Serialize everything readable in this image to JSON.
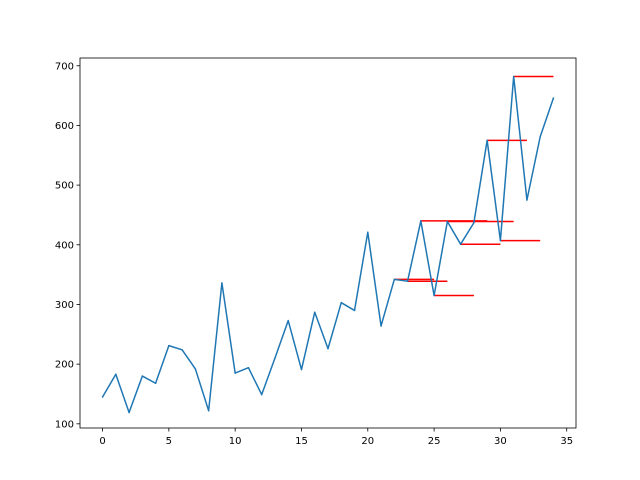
{
  "chart_data": {
    "type": "line",
    "title": "",
    "xlabel": "",
    "ylabel": "",
    "xlim": [
      -1.7,
      35.7
    ],
    "ylim": [
      93,
      713
    ],
    "x_ticks": [
      0,
      5,
      10,
      15,
      20,
      25,
      30,
      35
    ],
    "y_ticks": [
      100,
      200,
      300,
      400,
      500,
      600,
      700
    ],
    "grid": false,
    "legend": "none",
    "series": [
      {
        "color": "#1f77b4",
        "x": [
          0,
          1,
          2,
          3,
          4,
          5,
          6,
          7,
          8,
          9,
          10,
          11,
          12,
          13,
          14,
          15,
          16,
          17,
          18,
          19,
          20,
          21,
          22,
          23,
          24,
          25,
          26,
          27,
          28,
          29,
          30,
          31,
          32,
          33,
          34
        ],
        "values": [
          145,
          183,
          119,
          180,
          168,
          231,
          224,
          192,
          122,
          336,
          185,
          194,
          149,
          210,
          273,
          191,
          287,
          226,
          303,
          290,
          421,
          264,
          342,
          339,
          440,
          315,
          439,
          401,
          437,
          575,
          407,
          682,
          475,
          581,
          646
        ]
      }
    ],
    "segments": {
      "color": "#ff0000",
      "items": [
        {
          "x": [
            22,
            25
          ],
          "y": 342
        },
        {
          "x": [
            23,
            26
          ],
          "y": 339
        },
        {
          "x": [
            24,
            29
          ],
          "y": 440
        },
        {
          "x": [
            25,
            28
          ],
          "y": 315
        },
        {
          "x": [
            26,
            31
          ],
          "y": 439
        },
        {
          "x": [
            27,
            30
          ],
          "y": 401
        },
        {
          "x": [
            29,
            32
          ],
          "y": 575
        },
        {
          "x": [
            30,
            33
          ],
          "y": 407
        },
        {
          "x": [
            31,
            34
          ],
          "y": 682
        }
      ]
    }
  }
}
